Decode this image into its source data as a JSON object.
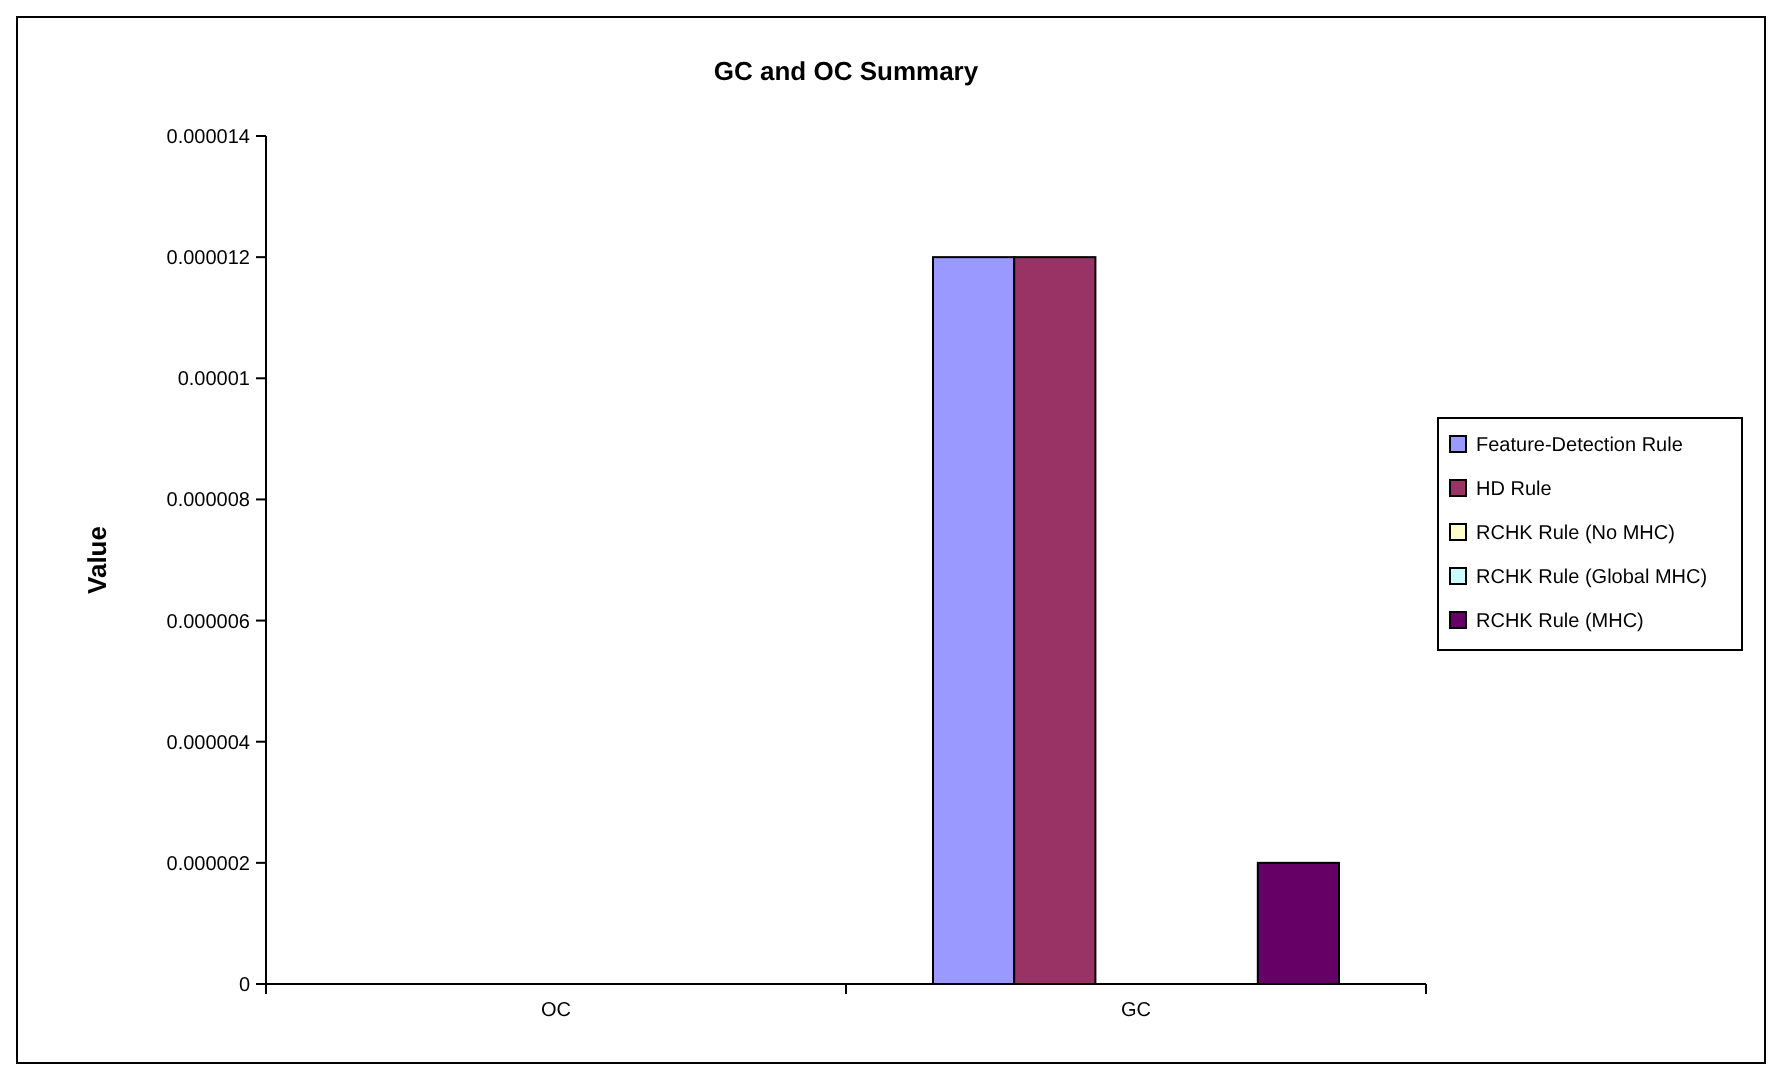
{
  "chart_data": {
    "type": "bar",
    "title": "GC and OC Summary",
    "ylabel": "Value",
    "categories": [
      "OC",
      "GC"
    ],
    "series": [
      {
        "name": "Feature-Detection Rule",
        "color": "#9999ff",
        "values": [
          0,
          1.2e-05
        ]
      },
      {
        "name": "HD Rule",
        "color": "#993366",
        "values": [
          0,
          1.2e-05
        ]
      },
      {
        "name": "RCHK Rule (No MHC)",
        "color": "#ffffcc",
        "values": [
          0,
          0
        ]
      },
      {
        "name": "RCHK Rule (Global MHC)",
        "color": "#ccffff",
        "values": [
          0,
          0
        ]
      },
      {
        "name": "RCHK Rule (MHC)",
        "color": "#660066",
        "values": [
          0,
          2e-06
        ]
      }
    ],
    "ylim": [
      0,
      1.4e-05
    ],
    "yticks": [
      {
        "value": 0,
        "label": "0"
      },
      {
        "value": 2e-06,
        "label": "0.000002"
      },
      {
        "value": 4e-06,
        "label": "0.000004"
      },
      {
        "value": 6e-06,
        "label": "0.000006"
      },
      {
        "value": 8e-06,
        "label": "0.000008"
      },
      {
        "value": 1e-05,
        "label": "0.00001"
      },
      {
        "value": 1.2e-05,
        "label": "0.000012"
      },
      {
        "value": 1.4e-05,
        "label": "0.000014"
      }
    ],
    "grid": false,
    "legend": "right"
  }
}
